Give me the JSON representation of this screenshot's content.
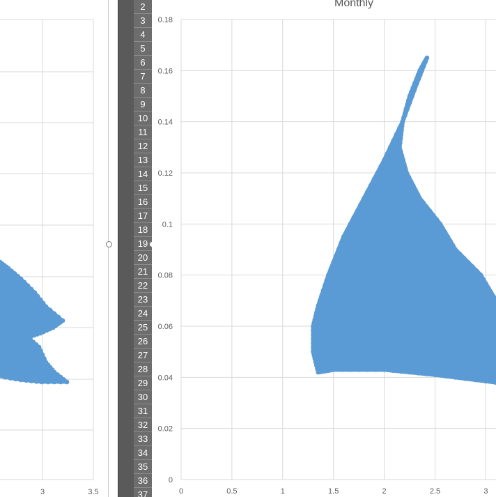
{
  "left_chart": {
    "x_ticks": [
      "3",
      "3.5"
    ]
  },
  "row_numbers": [
    "2",
    "3",
    "4",
    "5",
    "6",
    "7",
    "8",
    "9",
    "10",
    "11",
    "12",
    "13",
    "14",
    "15",
    "16",
    "17",
    "18",
    "19",
    "20",
    "21",
    "22",
    "23",
    "24",
    "25",
    "26",
    "27",
    "28",
    "29",
    "30",
    "31",
    "32",
    "33",
    "34",
    "35",
    "36",
    "37"
  ],
  "chart_data": {
    "type": "scatter",
    "title": "Monthly",
    "xlabel": "",
    "ylabel": "",
    "xlim": [
      0,
      3.1
    ],
    "ylim": [
      0,
      0.18
    ],
    "x_ticks": [
      "0",
      "0.5",
      "1",
      "1.5",
      "2",
      "2.5",
      "3"
    ],
    "y_ticks": [
      "0",
      "0.02",
      "0.04",
      "0.06",
      "0.08",
      "0.1",
      "0.12",
      "0.14",
      "0.16",
      "0.18"
    ],
    "grid": true,
    "color": "#5B9BD5",
    "outline": [
      [
        2.42,
        0.165
      ],
      [
        2.32,
        0.155
      ],
      [
        2.18,
        0.14
      ],
      [
        2.0,
        0.125
      ],
      [
        1.8,
        0.11
      ],
      [
        1.6,
        0.095
      ],
      [
        1.45,
        0.08
      ],
      [
        1.35,
        0.068
      ],
      [
        1.3,
        0.06
      ],
      [
        1.3,
        0.05
      ],
      [
        1.35,
        0.042
      ],
      [
        1.5,
        0.043
      ],
      [
        2.0,
        0.043
      ],
      [
        2.5,
        0.041
      ],
      [
        3.1,
        0.038
      ],
      [
        3.1,
        0.07
      ],
      [
        2.95,
        0.08
      ],
      [
        2.7,
        0.09
      ],
      [
        2.55,
        0.1
      ],
      [
        2.35,
        0.11
      ],
      [
        2.22,
        0.12
      ],
      [
        2.15,
        0.13
      ],
      [
        2.18,
        0.14
      ],
      [
        2.25,
        0.15
      ],
      [
        2.35,
        0.16
      ],
      [
        2.42,
        0.165
      ]
    ]
  }
}
